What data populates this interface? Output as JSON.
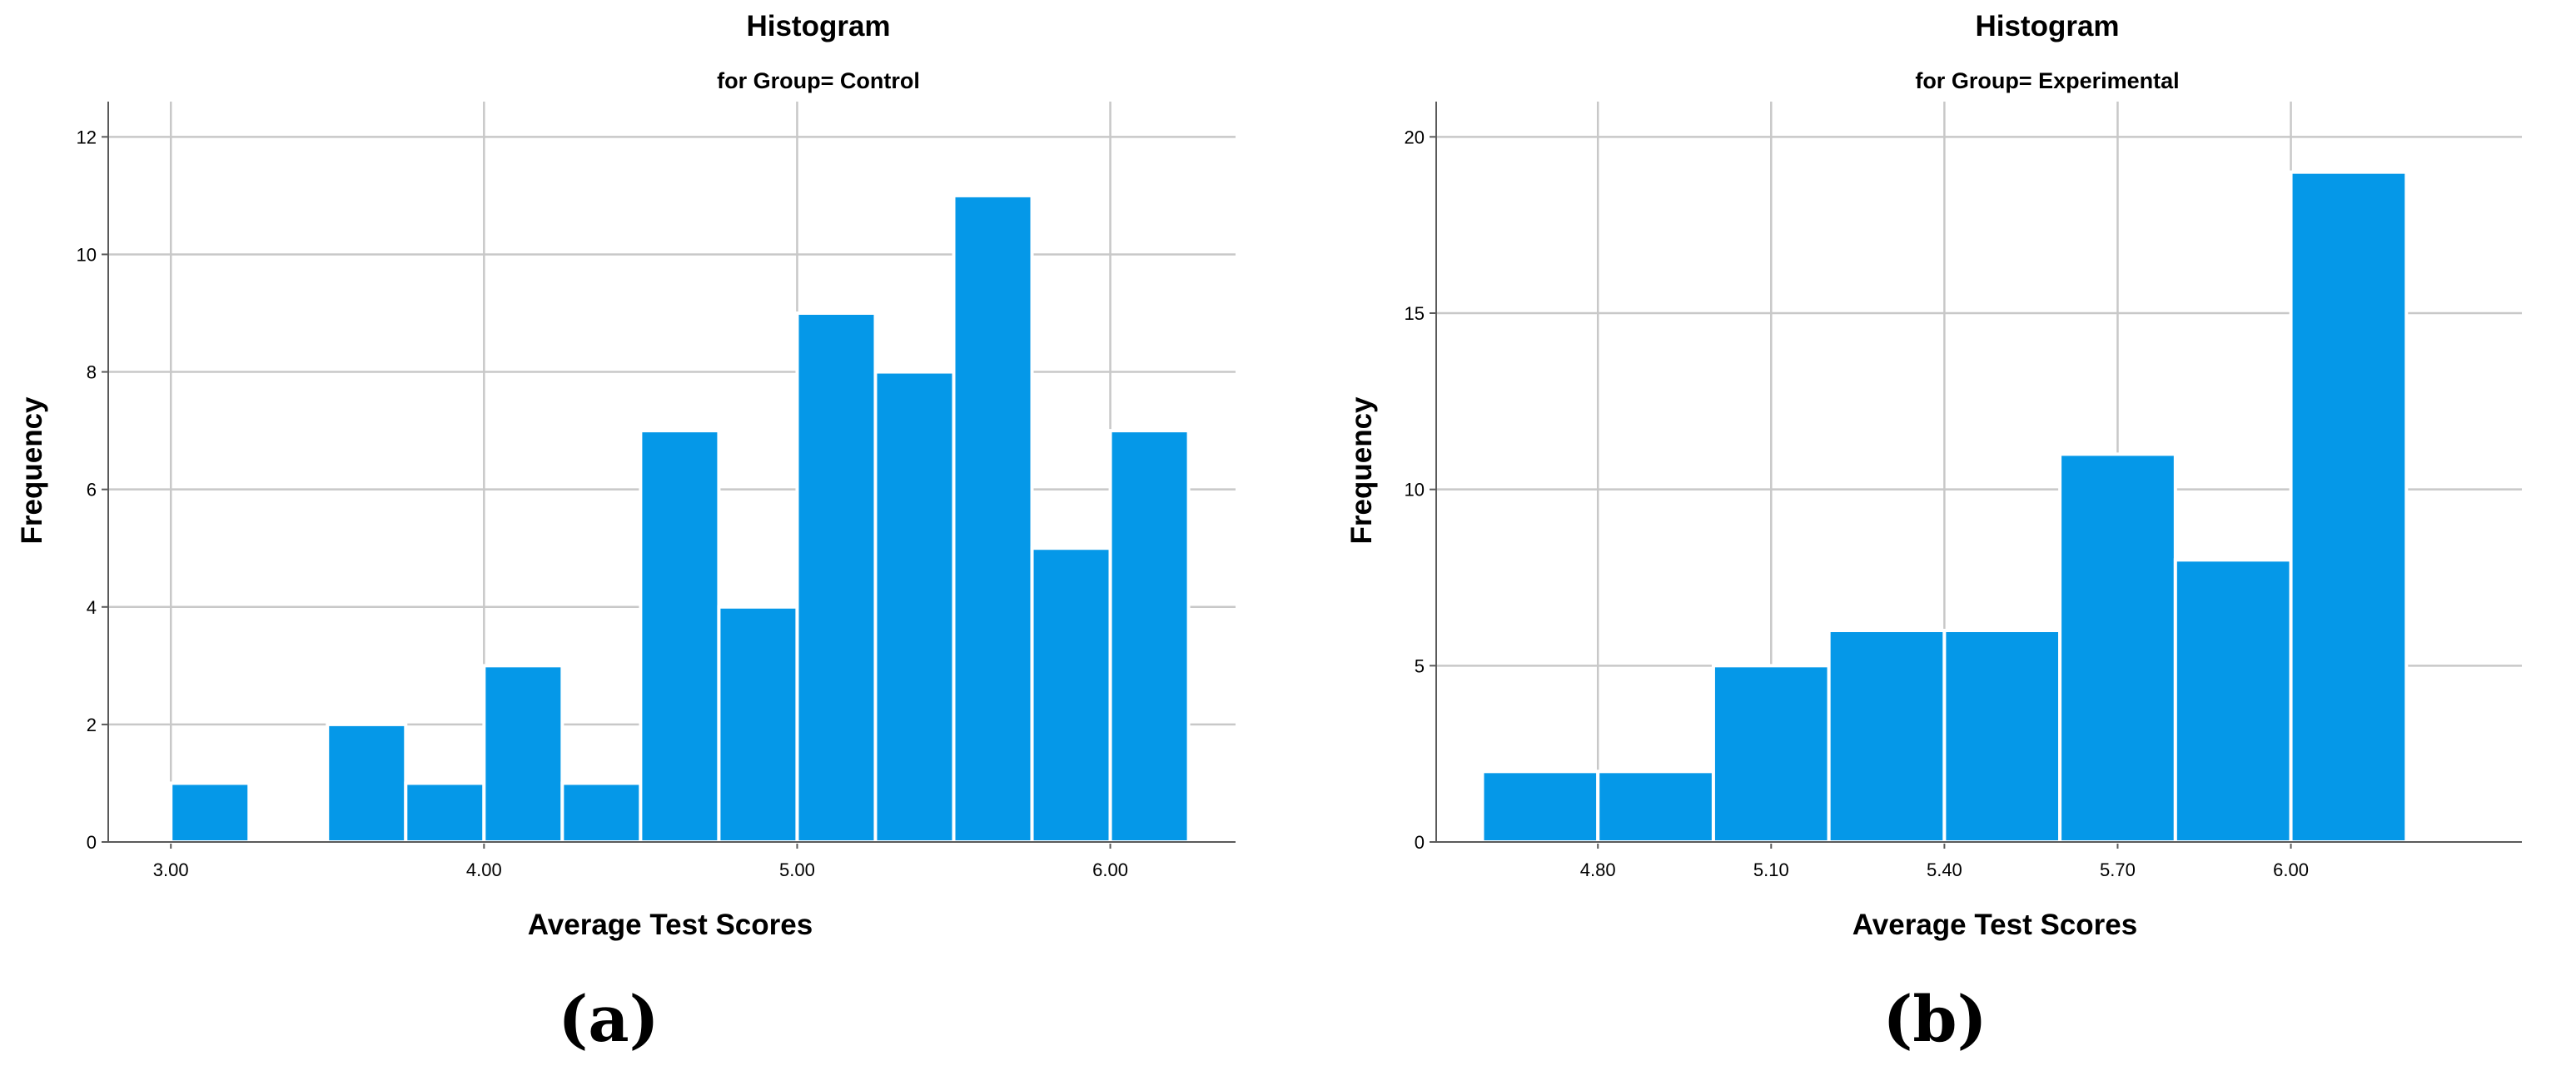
{
  "chart_data": [
    {
      "type": "bar",
      "panel_label": "(a)",
      "title": "Histogram",
      "subtitle": "for Group= Control",
      "xlabel": "Average Test Scores",
      "ylabel": "Frequency",
      "xlim": [
        2.8,
        6.4
      ],
      "ylim": [
        0,
        12.6
      ],
      "grid": true,
      "bar_color": "#0598E8",
      "xticks": [
        3.0,
        4.0,
        5.0,
        6.0
      ],
      "xtick_labels": [
        "3.00",
        "4.00",
        "5.00",
        "6.00"
      ],
      "yticks": [
        0,
        2,
        4,
        6,
        8,
        10,
        12
      ],
      "ytick_labels": [
        "0",
        "2",
        "4",
        "6",
        "8",
        "10",
        "12"
      ],
      "bin_edges": [
        3.0,
        3.25,
        3.5,
        3.75,
        4.0,
        4.25,
        4.5,
        4.75,
        5.0,
        5.25,
        5.5,
        5.75,
        6.0,
        6.25
      ],
      "values": [
        1,
        0,
        2,
        1,
        3,
        1,
        7,
        4,
        9,
        8,
        11,
        5,
        7
      ]
    },
    {
      "type": "bar",
      "panel_label": "(b)",
      "title": "Histogram",
      "subtitle": "for Group= Experimental",
      "xlabel": "Average Test Scores",
      "ylabel": "Frequency",
      "xlim": [
        4.52,
        6.4
      ],
      "ylim": [
        0,
        21
      ],
      "grid": true,
      "bar_color": "#0598E8",
      "xticks": [
        4.8,
        5.1,
        5.4,
        5.7,
        6.0
      ],
      "xtick_labels": [
        "4.80",
        "5.10",
        "5.40",
        "5.70",
        "6.00"
      ],
      "yticks": [
        0,
        5,
        10,
        15,
        20
      ],
      "ytick_labels": [
        "0",
        "5",
        "10",
        "15",
        "20"
      ],
      "bin_edges": [
        4.6,
        4.8,
        5.0,
        5.2,
        5.4,
        5.6,
        5.8,
        6.0,
        6.2
      ],
      "values": [
        2,
        2,
        5,
        6,
        6,
        11,
        8,
        19
      ]
    }
  ]
}
